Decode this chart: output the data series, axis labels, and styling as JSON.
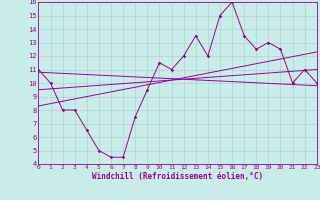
{
  "xlabel": "Windchill (Refroidissement éolien,°C)",
  "x": [
    0,
    1,
    2,
    3,
    4,
    5,
    6,
    7,
    8,
    9,
    10,
    11,
    12,
    13,
    14,
    15,
    16,
    17,
    18,
    19,
    20,
    21,
    22,
    23
  ],
  "line_jagged": [
    11,
    10,
    8,
    8,
    6.5,
    5,
    4.5,
    4.5,
    7.5,
    9.5,
    11.5,
    11,
    12,
    13.5,
    12,
    15,
    16,
    13.5,
    12.5,
    13,
    12.5,
    10,
    11,
    10
  ],
  "trend1_x": [
    0,
    23
  ],
  "trend1_y": [
    10.8,
    9.8
  ],
  "trend2_x": [
    0,
    23
  ],
  "trend2_y": [
    8.3,
    12.3
  ],
  "trend3_x": [
    0,
    23
  ],
  "trend3_y": [
    9.5,
    11.0
  ],
  "bg_color": "#c8ece8",
  "line_color": "#990099",
  "grid_color": "#aacccc",
  "ylim": [
    4,
    16
  ],
  "xlim": [
    0,
    23
  ],
  "yticks": [
    4,
    5,
    6,
    7,
    8,
    9,
    10,
    11,
    12,
    13,
    14,
    15,
    16
  ],
  "xticks": [
    0,
    1,
    2,
    3,
    4,
    5,
    6,
    7,
    8,
    9,
    10,
    11,
    12,
    13,
    14,
    15,
    16,
    17,
    18,
    19,
    20,
    21,
    22,
    23
  ]
}
